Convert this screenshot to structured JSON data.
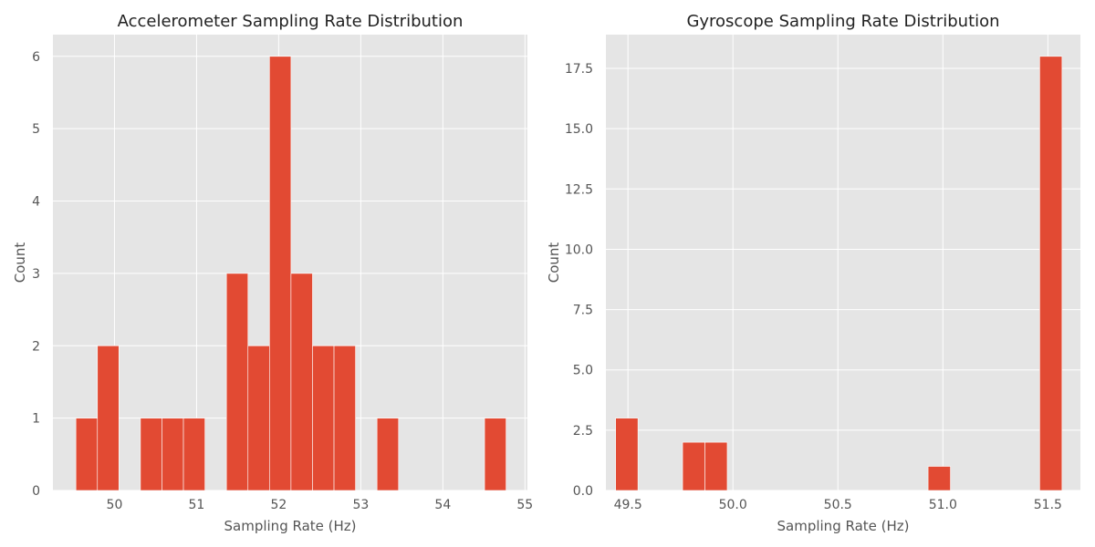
{
  "chart_data": [
    {
      "type": "bar",
      "title": "Accelerometer Sampling Rate Distribution",
      "xlabel": "Sampling Rate (Hz)",
      "ylabel": "Count",
      "xlim": [
        49.25,
        55.03
      ],
      "ylim": [
        0,
        6.3
      ],
      "xticks": [
        50,
        51,
        52,
        53,
        54,
        55
      ],
      "xtick_labels": [
        "50",
        "51",
        "52",
        "53",
        "54",
        "55"
      ],
      "yticks": [
        0,
        1,
        2,
        3,
        4,
        5,
        6
      ],
      "ytick_labels": [
        "0",
        "1",
        "2",
        "3",
        "4",
        "5",
        "6"
      ],
      "grid": true,
      "bin_start": 49.53,
      "bin_width": 0.262,
      "values": [
        1,
        2,
        0,
        1,
        1,
        1,
        0,
        3,
        2,
        6,
        3,
        2,
        2,
        0,
        1,
        0,
        0,
        0,
        0,
        1
      ]
    },
    {
      "type": "bar",
      "title": "Gyroscope Sampling Rate Distribution",
      "xlabel": "Sampling Rate (Hz)",
      "ylabel": "Count",
      "xlim": [
        49.395,
        51.655
      ],
      "ylim": [
        0,
        18.9
      ],
      "xticks": [
        49.5,
        50.0,
        50.5,
        51.0,
        51.5
      ],
      "xtick_labels": [
        "49.5",
        "50.0",
        "50.5",
        "51.0",
        "51.5"
      ],
      "yticks": [
        0,
        2.5,
        5,
        7.5,
        10,
        12.5,
        15,
        17.5
      ],
      "ytick_labels": [
        "0.0",
        "2.5",
        "5.0",
        "7.5",
        "10.0",
        "12.5",
        "15.0",
        "17.5"
      ],
      "grid": true,
      "bin_start": 49.4414,
      "bin_width": 0.1063,
      "values": [
        3,
        0,
        0,
        2,
        2,
        0,
        0,
        0,
        0,
        0,
        0,
        0,
        0,
        0,
        1,
        0,
        0,
        0,
        0,
        18
      ]
    }
  ]
}
